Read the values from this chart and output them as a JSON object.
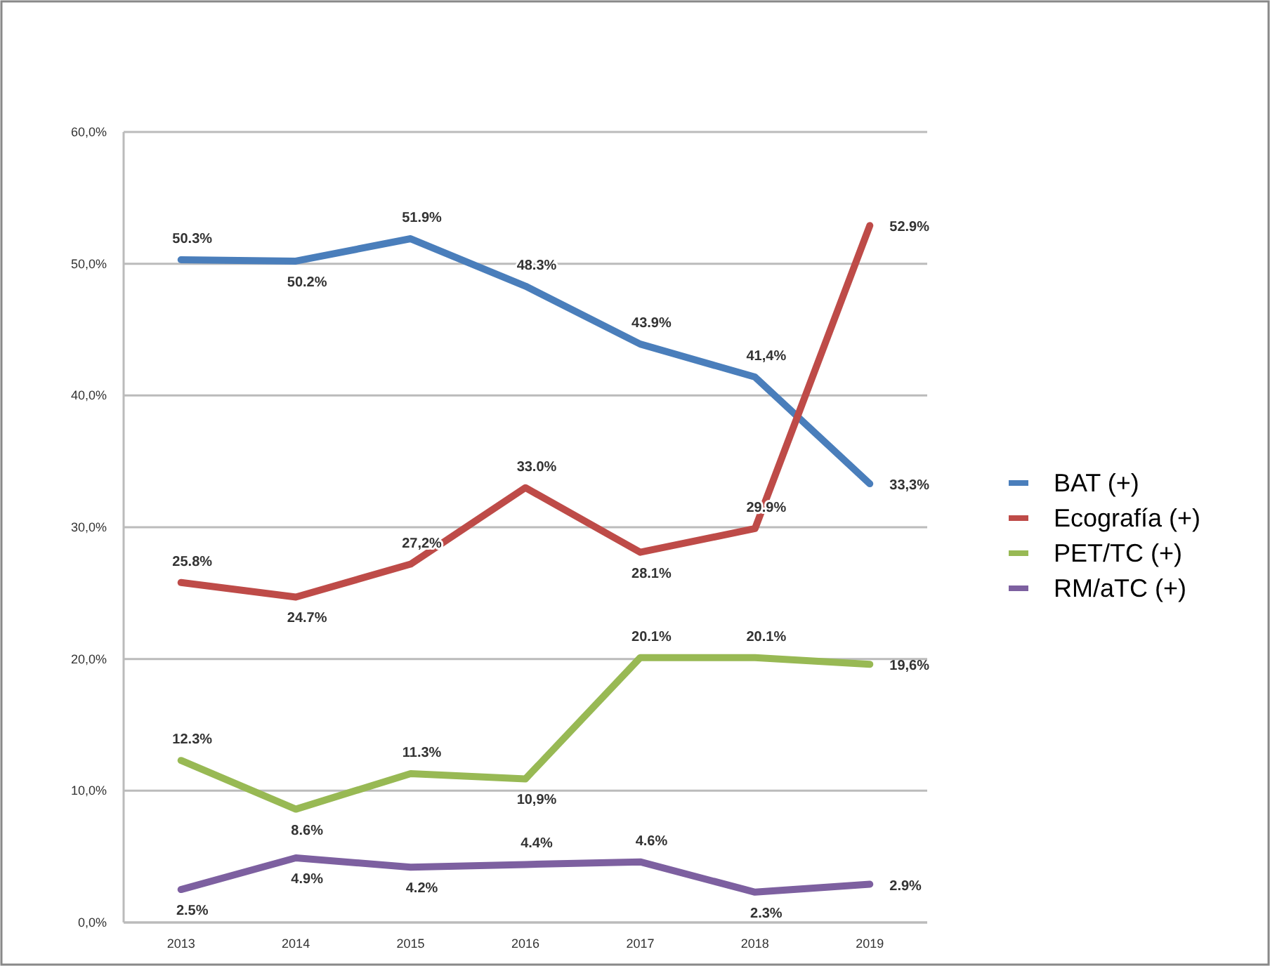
{
  "chart_data": {
    "type": "line",
    "categories": [
      "2013",
      "2014",
      "2015",
      "2016",
      "2017",
      "2018",
      "2019"
    ],
    "series": [
      {
        "name": "BAT (+)",
        "color": "#4a7ebb",
        "values": [
          50.3,
          50.2,
          51.9,
          48.3,
          43.9,
          41.4,
          33.3
        ],
        "value_labels": [
          "50.3%",
          "50.2%",
          "51.9%",
          "48.3%",
          "43.9%",
          "41,4%",
          "33,3%"
        ]
      },
      {
        "name": "Ecografía (+)",
        "color": "#be4b48",
        "values": [
          25.8,
          24.7,
          27.2,
          33.0,
          28.1,
          29.9,
          52.9
        ],
        "value_labels": [
          "25.8%",
          "24.7%",
          "27,2%",
          "33.0%",
          "28.1%",
          "29.9%",
          "52.9%"
        ]
      },
      {
        "name": "PET/TC (+)",
        "color": "#98b954",
        "values": [
          12.3,
          8.6,
          11.3,
          10.9,
          20.1,
          20.1,
          19.6
        ],
        "value_labels": [
          "12.3%",
          "8.6%",
          "11.3%",
          "10,9%",
          "20.1%",
          "20.1%",
          "19,6%"
        ]
      },
      {
        "name": "RM/aTC (+)",
        "color": "#7d60a0",
        "values": [
          2.5,
          4.9,
          4.2,
          4.4,
          4.6,
          2.3,
          2.9
        ],
        "value_labels": [
          "2.5%",
          "4.9%",
          "4.2%",
          "4.4%",
          "4.6%",
          "2.3%",
          "2.9%"
        ]
      }
    ],
    "ylim": [
      0,
      60
    ],
    "yticks": [
      {
        "value": 0,
        "label": "0,0%"
      },
      {
        "value": 10,
        "label": "10,0%"
      },
      {
        "value": 20,
        "label": "20,0%"
      },
      {
        "value": 30,
        "label": "30,0%"
      },
      {
        "value": 40,
        "label": "40,0%"
      },
      {
        "value": 50,
        "label": "50,0%"
      },
      {
        "value": 60,
        "label": "60,0%"
      }
    ],
    "grid": "y",
    "legend": "right",
    "marker": "none",
    "line_style": "solid"
  }
}
